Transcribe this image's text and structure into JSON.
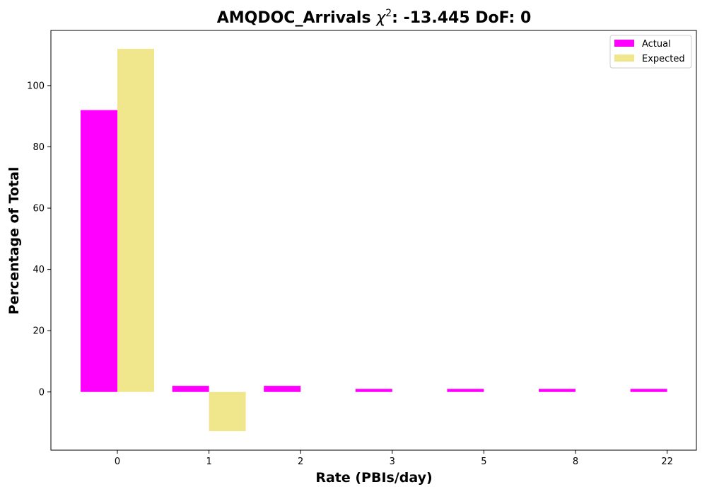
{
  "chart_data": {
    "type": "bar",
    "title_prefix": "AMQDOC_Arrivals ",
    "title_chi": "χ",
    "title_sup": "2",
    "title_suffix": ": -13.445 DoF: 0",
    "xlabel": "Rate (PBIs/day)",
    "ylabel": "Percentage of Total",
    "categories": [
      "0",
      "1",
      "2",
      "3",
      "5",
      "8",
      "22"
    ],
    "series": [
      {
        "name": "Actual",
        "color": "#ff00ff",
        "values": [
          92,
          2,
          2,
          1,
          1,
          1,
          1
        ]
      },
      {
        "name": "Expected",
        "color": "#f0e68c",
        "values": [
          112,
          -12.8,
          0,
          0,
          0,
          0,
          0
        ]
      }
    ],
    "ylim": [
      -19,
      118
    ],
    "yticks": [
      0,
      20,
      40,
      60,
      80,
      100
    ],
    "legend_position": "top-right",
    "grid": false
  }
}
